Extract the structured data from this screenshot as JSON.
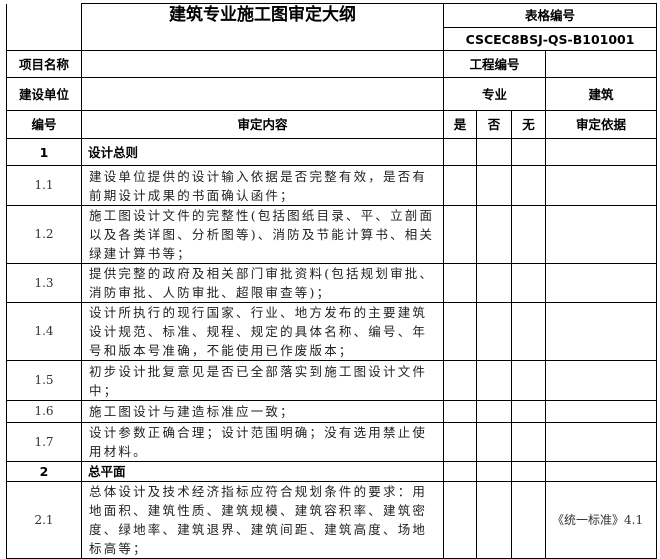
{
  "header": {
    "title": "建筑专业施工图审定大纲",
    "form_code_label": "表格编号",
    "form_code": "CSCEC8BSJ-QS-B101001",
    "project_name_label": "项目名称",
    "project_name": "",
    "project_no_label": "工程编号",
    "project_no": "",
    "client_label": "建设单位",
    "client": "",
    "discipline_label": "专业",
    "discipline": "建筑"
  },
  "columns": {
    "no": "编号",
    "content": "审定内容",
    "yes": "是",
    "no_opt": "否",
    "na": "无",
    "basis": "审定依据"
  },
  "rows": [
    {
      "no": "1",
      "content": "设计总则",
      "section": true,
      "basis": ""
    },
    {
      "no": "1.1",
      "content": "建设单位提供的设计输入依据是否完整有效，是否有前期设计成果的书面确认函件；",
      "basis": ""
    },
    {
      "no": "1.2",
      "content": "施工图设计文件的完整性(包括图纸目录、平、立剖面以及各类详图、分析图等)、消防及节能计算书、相关绿建计算书等；",
      "basis": ""
    },
    {
      "no": "1.3",
      "content": "提供完整的政府及相关部门审批资料(包括规划审批、消防审批、人防审批、超限审查等)；",
      "basis": ""
    },
    {
      "no": "1.4",
      "content": "设计所执行的现行国家、行业、地方发布的主要建筑设计规范、标准、规程、规定的具体名称、编号、年号和版本号准确，不能使用已作废版本；",
      "basis": ""
    },
    {
      "no": "1.5",
      "content": "初步设计批复意见是否已全部落实到施工图设计文件中；",
      "basis": ""
    },
    {
      "no": "1.6",
      "content": "施工图设计与建造标准应一致；",
      "basis": ""
    },
    {
      "no": "1.7",
      "content": "设计参数正确合理；设计范围明确；没有选用禁止使用材料。",
      "basis": ""
    },
    {
      "no": "2",
      "content": "总平面",
      "section": true,
      "basis": ""
    },
    {
      "no": "2.1",
      "content": "总体设计及技术经济指标应符合规划条件的要求：用地面积、建筑性质、建筑规模、建筑容积率、建筑密度、绿地率、建筑退界、建筑间距、建筑高度、场地标高等；",
      "basis": "《统一标准》4.1"
    }
  ]
}
